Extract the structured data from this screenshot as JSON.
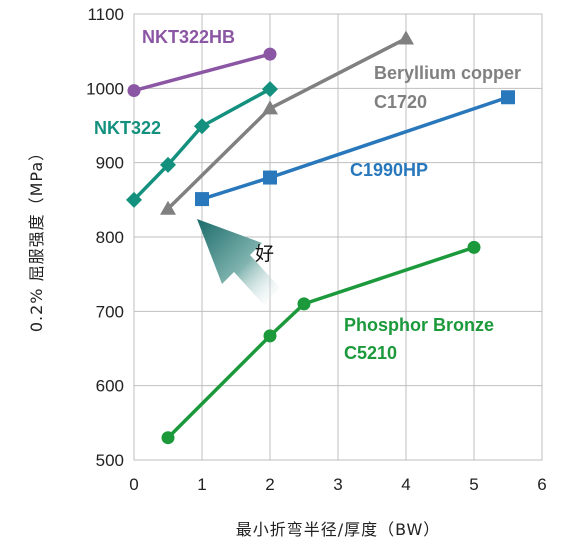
{
  "chart_data": {
    "type": "line",
    "title": "",
    "xlabel": "最小折弯半径/厚度（BW）",
    "ylabel": "0.2% 屈服强度（MPa）",
    "xlim": [
      0,
      6
    ],
    "ylim": [
      500,
      1100
    ],
    "x_ticks": [
      "0",
      "1",
      "2",
      "3",
      "4",
      "5",
      "6"
    ],
    "y_ticks": [
      "500",
      "600",
      "700",
      "800",
      "900",
      "1000",
      "1100"
    ],
    "grid": true,
    "annotations": [
      {
        "text": "好",
        "arrow": "points toward upper-left (better)"
      }
    ],
    "series": [
      {
        "name": "NKT322HB",
        "color": "#8b57a4",
        "marker": "circle",
        "points": [
          [
            0,
            997
          ],
          [
            2,
            1046
          ]
        ]
      },
      {
        "name": "NKT322",
        "color": "#14917e",
        "marker": "diamond",
        "points": [
          [
            0,
            850
          ],
          [
            0.5,
            897
          ],
          [
            1,
            949
          ],
          [
            2,
            999
          ]
        ]
      },
      {
        "name": "Beryllium copper C1720",
        "label_lines": [
          "Beryllium copper",
          "C1720"
        ],
        "color": "#808080",
        "marker": "triangle",
        "points": [
          [
            0.5,
            838
          ],
          [
            2,
            973
          ],
          [
            4,
            1067
          ]
        ]
      },
      {
        "name": "C1990HP",
        "color": "#2a78bc",
        "marker": "square",
        "points": [
          [
            1,
            851
          ],
          [
            2,
            880
          ],
          [
            5.5,
            988
          ]
        ]
      },
      {
        "name": "Phosphor Bronze C5210",
        "label_lines": [
          "Phosphor Bronze",
          "C5210"
        ],
        "color": "#1c9a3b",
        "marker": "circle",
        "points": [
          [
            0.5,
            530
          ],
          [
            2,
            667
          ],
          [
            2.5,
            710
          ],
          [
            5,
            786
          ]
        ]
      }
    ]
  }
}
